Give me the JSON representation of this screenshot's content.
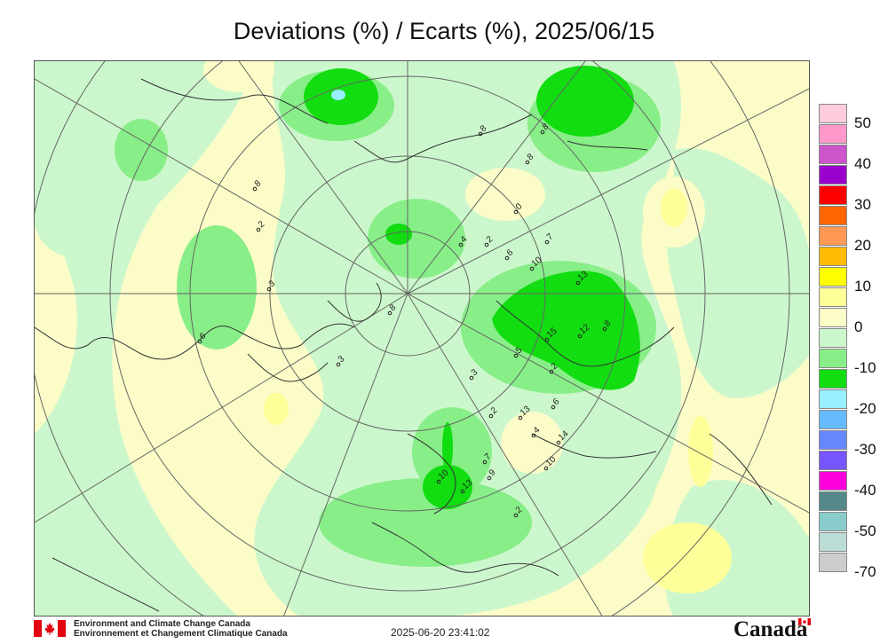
{
  "title": "Deviations (%) / Ecarts (%), 2025/06/15",
  "legend": [
    {
      "label": "50",
      "color": "#ffccdd"
    },
    {
      "label": "",
      "color": "#ff99cc"
    },
    {
      "label": "40",
      "color": "#cc55cc"
    },
    {
      "label": "",
      "color": "#9900cc"
    },
    {
      "label": "30",
      "color": "#ff0000"
    },
    {
      "label": "",
      "color": "#ff6600"
    },
    {
      "label": "20",
      "color": "#ff9955"
    },
    {
      "label": "",
      "color": "#ffbb00"
    },
    {
      "label": "10",
      "color": "#ffff00"
    },
    {
      "label": "",
      "color": "#ffff99"
    },
    {
      "label": "0",
      "color": "#fcfcc8"
    },
    {
      "label": "",
      "color": "#ccf7cc"
    },
    {
      "label": "-10",
      "color": "#88ee88"
    },
    {
      "label": "",
      "color": "#11dd11"
    },
    {
      "label": "-20",
      "color": "#99eeff"
    },
    {
      "label": "",
      "color": "#66bbff"
    },
    {
      "label": "-30",
      "color": "#6688ff"
    },
    {
      "label": "",
      "color": "#7755ff"
    },
    {
      "label": "-40",
      "color": "#ff00dd"
    },
    {
      "label": "",
      "color": "#558888"
    },
    {
      "label": "-50",
      "color": "#88cccc"
    },
    {
      "label": "",
      "color": "#bbddd6"
    },
    {
      "label": "-70",
      "color": "#cccccc"
    }
  ],
  "station_values": [
    "8",
    "8",
    "8",
    "2",
    "3",
    "0",
    "7",
    "6",
    "10",
    "13",
    "5",
    "12",
    "15",
    "8",
    "2",
    "2",
    "3",
    "3",
    "13",
    "4",
    "14",
    "6",
    "7",
    "9",
    "10",
    "13",
    "10",
    "2",
    "8",
    "4",
    "2",
    "6",
    "8"
  ],
  "footer": {
    "agency_en": "Environment and Climate Change Canada",
    "agency_fr": "Environnement et Changement Climatique Canada",
    "timestamp": "2025-06-20 23:41:02",
    "wordmark": "Canada"
  }
}
